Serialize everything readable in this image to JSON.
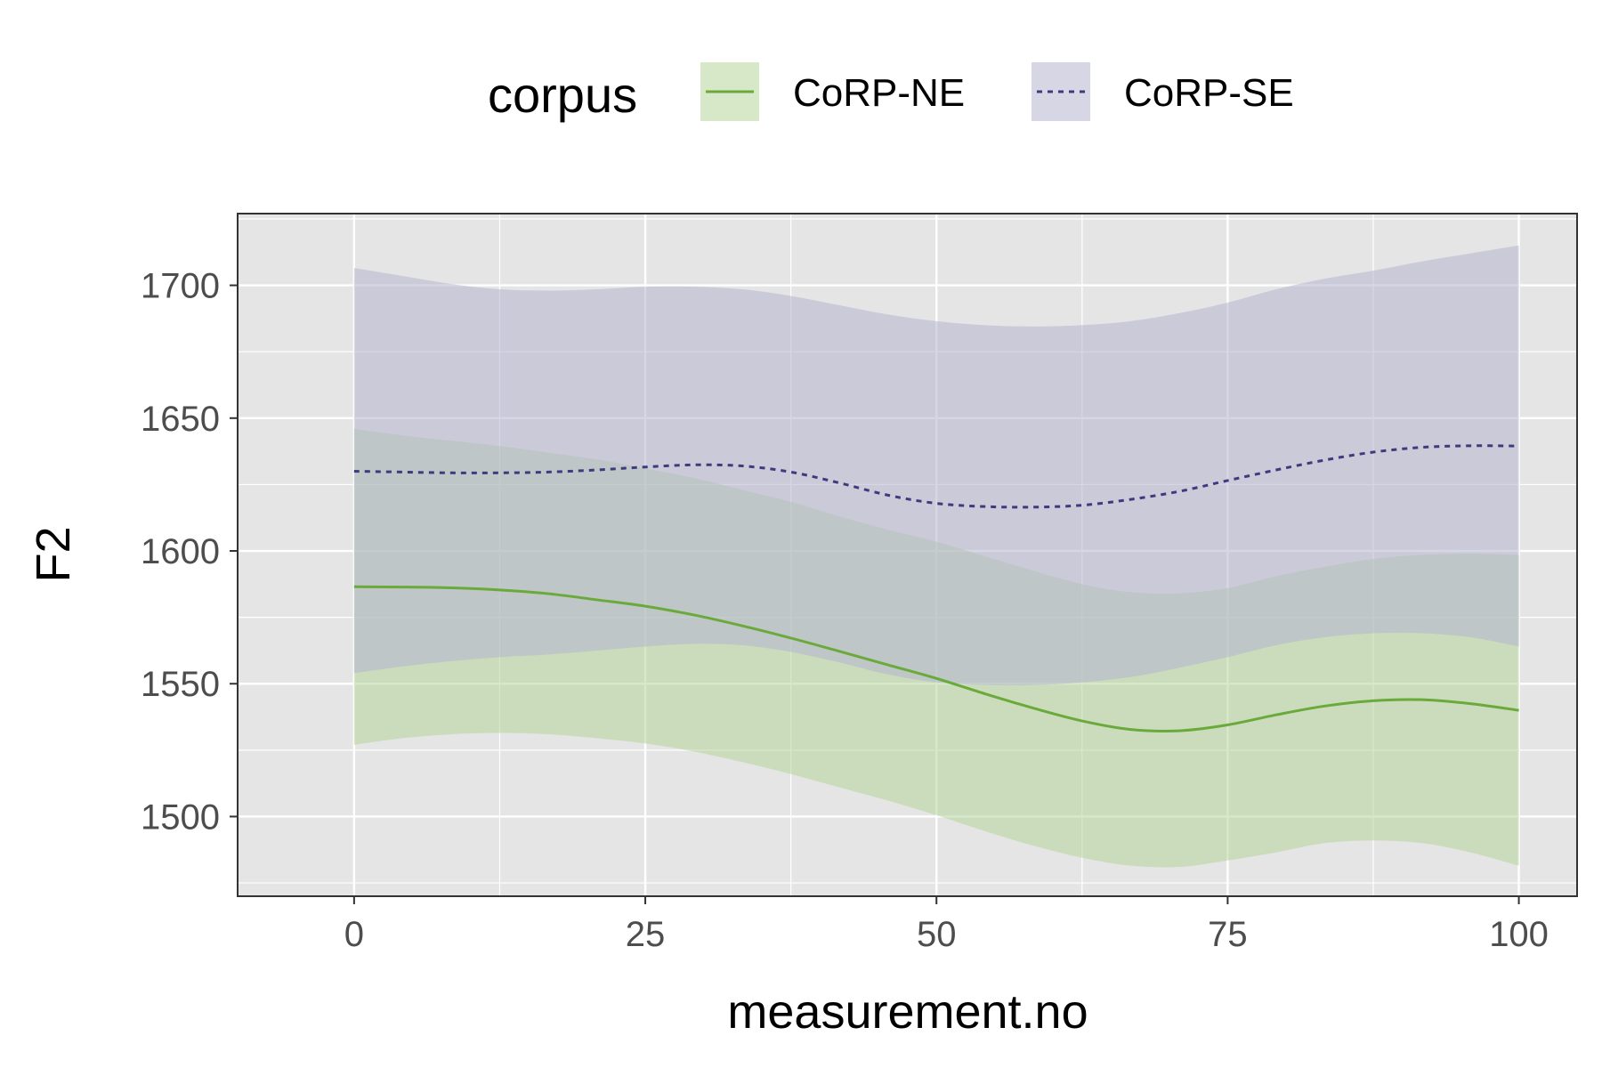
{
  "chart_data": {
    "type": "line",
    "xlabel": "measurement.no",
    "ylabel": "F2",
    "xlim": [
      -10,
      105
    ],
    "ylim": [
      1470,
      1727
    ],
    "x_ticks": [
      0,
      25,
      50,
      75,
      100
    ],
    "x_tick_labels": [
      "0",
      "25",
      "50",
      "75",
      "100"
    ],
    "y_ticks": [
      1500,
      1550,
      1600,
      1650,
      1700
    ],
    "y_tick_labels": [
      "1500",
      "1550",
      "1600",
      "1650",
      "1700"
    ],
    "grid": true,
    "legend": {
      "title": "corpus",
      "position": "top"
    },
    "x": [
      0,
      4.17,
      8.33,
      12.5,
      16.67,
      20.83,
      25,
      29.17,
      33.33,
      37.5,
      41.67,
      45.83,
      50,
      54.17,
      58.33,
      62.5,
      66.67,
      70.83,
      75,
      79.17,
      83.33,
      87.5,
      91.67,
      95.83,
      100
    ],
    "series": [
      {
        "name": "CoRP-NE",
        "color": "#6aaa3a",
        "fill_color": "#b5d69a",
        "line_style": "solid",
        "values": [
          1586.5,
          1586.4,
          1586.1,
          1585.3,
          1583.9,
          1581.6,
          1579.2,
          1575.9,
          1571.8,
          1567.2,
          1562.2,
          1557.1,
          1552.0,
          1546.2,
          1540.8,
          1536.0,
          1532.8,
          1532.3,
          1534.5,
          1538.3,
          1541.6,
          1543.6,
          1544.0,
          1542.5,
          1540.0
        ],
        "lower": [
          1527.0,
          1529.5,
          1531.0,
          1531.5,
          1531.0,
          1529.5,
          1527.5,
          1524.5,
          1520.5,
          1516.0,
          1511.0,
          1506.0,
          1500.5,
          1494.5,
          1489.0,
          1484.5,
          1481.5,
          1481.0,
          1483.5,
          1486.5,
          1490.0,
          1491.0,
          1490.0,
          1486.5,
          1481.5
        ],
        "upper": [
          1646.0,
          1643.5,
          1641.5,
          1639.5,
          1637.0,
          1634.5,
          1631.0,
          1627.5,
          1623.0,
          1618.5,
          1613.0,
          1608.0,
          1603.5,
          1598.0,
          1592.5,
          1587.5,
          1584.5,
          1584.0,
          1586.0,
          1590.5,
          1594.0,
          1597.0,
          1598.5,
          1599.0,
          1598.5
        ]
      },
      {
        "name": "CoRP-SE",
        "color": "#3f3a7e",
        "fill_color": "#b7b4cf",
        "line_style": "dashed",
        "values": [
          1630.0,
          1629.7,
          1629.4,
          1629.4,
          1629.7,
          1630.5,
          1631.6,
          1632.4,
          1632.0,
          1629.7,
          1625.6,
          1621.0,
          1617.9,
          1616.7,
          1616.5,
          1617.2,
          1619.4,
          1622.4,
          1626.5,
          1630.5,
          1634.2,
          1637.2,
          1639.0,
          1639.6,
          1639.5
        ],
        "lower": [
          1554.0,
          1556.5,
          1558.5,
          1560.0,
          1561.0,
          1562.5,
          1564.0,
          1565.0,
          1564.5,
          1562.0,
          1558.0,
          1553.5,
          1550.5,
          1549.5,
          1549.5,
          1550.5,
          1552.5,
          1556.0,
          1560.0,
          1564.5,
          1567.5,
          1569.0,
          1569.0,
          1567.5,
          1564.0
        ],
        "upper": [
          1706.5,
          1703.5,
          1700.5,
          1698.5,
          1698.0,
          1698.5,
          1699.5,
          1699.5,
          1698.5,
          1696.0,
          1692.5,
          1689.0,
          1686.5,
          1685.0,
          1684.5,
          1685.0,
          1686.5,
          1689.5,
          1693.5,
          1698.5,
          1702.5,
          1705.5,
          1709.0,
          1712.0,
          1715.0
        ]
      }
    ]
  }
}
